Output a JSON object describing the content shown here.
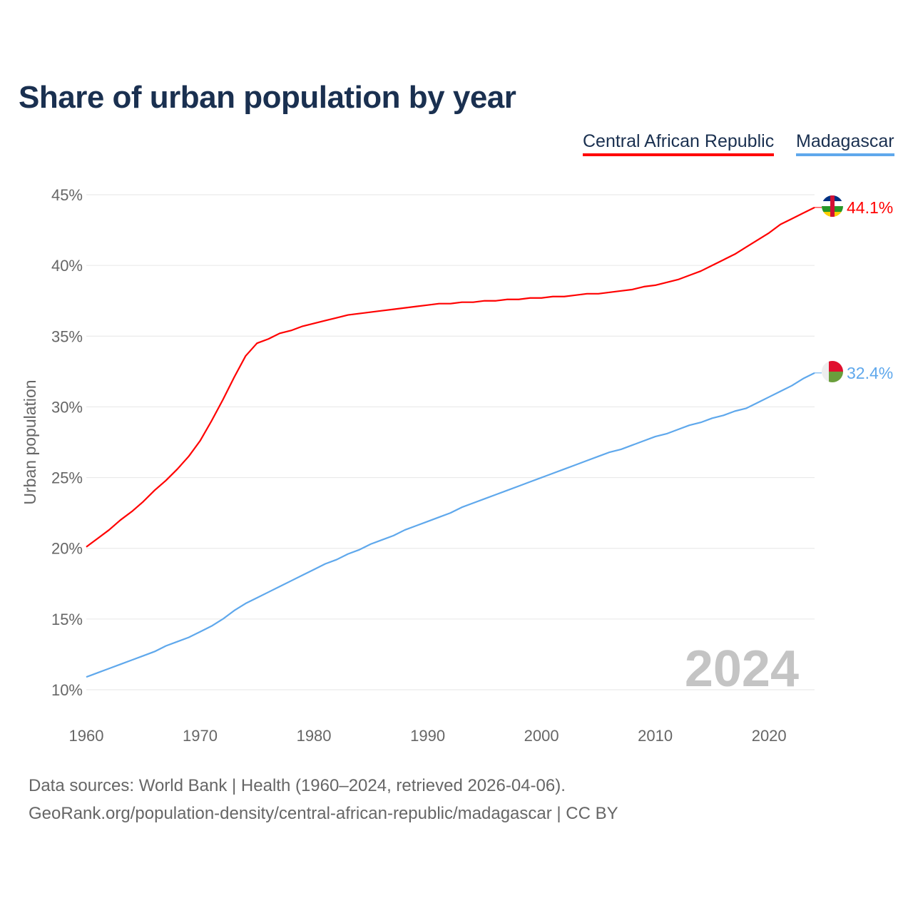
{
  "chart_data": {
    "type": "line",
    "title": "Share of urban population by year",
    "ylabel": "Urban population",
    "xlabel": "",
    "ylim": [
      10,
      45
    ],
    "xlim": [
      1960,
      2024
    ],
    "y_ticks": [
      "10%",
      "15%",
      "20%",
      "25%",
      "30%",
      "35%",
      "40%",
      "45%"
    ],
    "x_ticks": [
      "1960",
      "1970",
      "1980",
      "1990",
      "2000",
      "2010",
      "2020"
    ],
    "grid": true,
    "legend_position": "top-right",
    "year_watermark": "2024",
    "x": [
      1960,
      1961,
      1962,
      1963,
      1964,
      1965,
      1966,
      1967,
      1968,
      1969,
      1970,
      1971,
      1972,
      1973,
      1974,
      1975,
      1976,
      1977,
      1978,
      1979,
      1980,
      1981,
      1982,
      1983,
      1984,
      1985,
      1986,
      1987,
      1988,
      1989,
      1990,
      1991,
      1992,
      1993,
      1994,
      1995,
      1996,
      1997,
      1998,
      1999,
      2000,
      2001,
      2002,
      2003,
      2004,
      2005,
      2006,
      2007,
      2008,
      2009,
      2010,
      2011,
      2012,
      2013,
      2014,
      2015,
      2016,
      2017,
      2018,
      2019,
      2020,
      2021,
      2022,
      2023,
      2024
    ],
    "series": [
      {
        "name": "Central African Republic",
        "color": "#ff0000",
        "end_label": "44.1%",
        "values": [
          20.1,
          20.7,
          21.3,
          22.0,
          22.6,
          23.3,
          24.1,
          24.8,
          25.6,
          26.5,
          27.6,
          29.0,
          30.5,
          32.1,
          33.6,
          34.5,
          34.8,
          35.2,
          35.4,
          35.7,
          35.9,
          36.1,
          36.3,
          36.5,
          36.6,
          36.7,
          36.8,
          36.9,
          37.0,
          37.1,
          37.2,
          37.3,
          37.3,
          37.4,
          37.4,
          37.5,
          37.5,
          37.6,
          37.6,
          37.7,
          37.7,
          37.8,
          37.8,
          37.9,
          38.0,
          38.0,
          38.1,
          38.2,
          38.3,
          38.5,
          38.6,
          38.8,
          39.0,
          39.3,
          39.6,
          40.0,
          40.4,
          40.8,
          41.3,
          41.8,
          42.3,
          42.9,
          43.3,
          43.7,
          44.1
        ]
      },
      {
        "name": "Madagascar",
        "color": "#5fa8ec",
        "end_label": "32.4%",
        "values": [
          10.9,
          11.2,
          11.5,
          11.8,
          12.1,
          12.4,
          12.7,
          13.1,
          13.4,
          13.7,
          14.1,
          14.5,
          15.0,
          15.6,
          16.1,
          16.5,
          16.9,
          17.3,
          17.7,
          18.1,
          18.5,
          18.9,
          19.2,
          19.6,
          19.9,
          20.3,
          20.6,
          20.9,
          21.3,
          21.6,
          21.9,
          22.2,
          22.5,
          22.9,
          23.2,
          23.5,
          23.8,
          24.1,
          24.4,
          24.7,
          25.0,
          25.3,
          25.6,
          25.9,
          26.2,
          26.5,
          26.8,
          27.0,
          27.3,
          27.6,
          27.9,
          28.1,
          28.4,
          28.7,
          28.9,
          29.2,
          29.4,
          29.7,
          29.9,
          30.3,
          30.7,
          31.1,
          31.5,
          32.0,
          32.4
        ]
      }
    ]
  },
  "footer": {
    "line1": "Data sources: World Bank | Health (1960–2024, retrieved 2026-04-06).",
    "line2": "GeoRank.org/population-density/central-african-republic/madagascar | CC BY"
  }
}
